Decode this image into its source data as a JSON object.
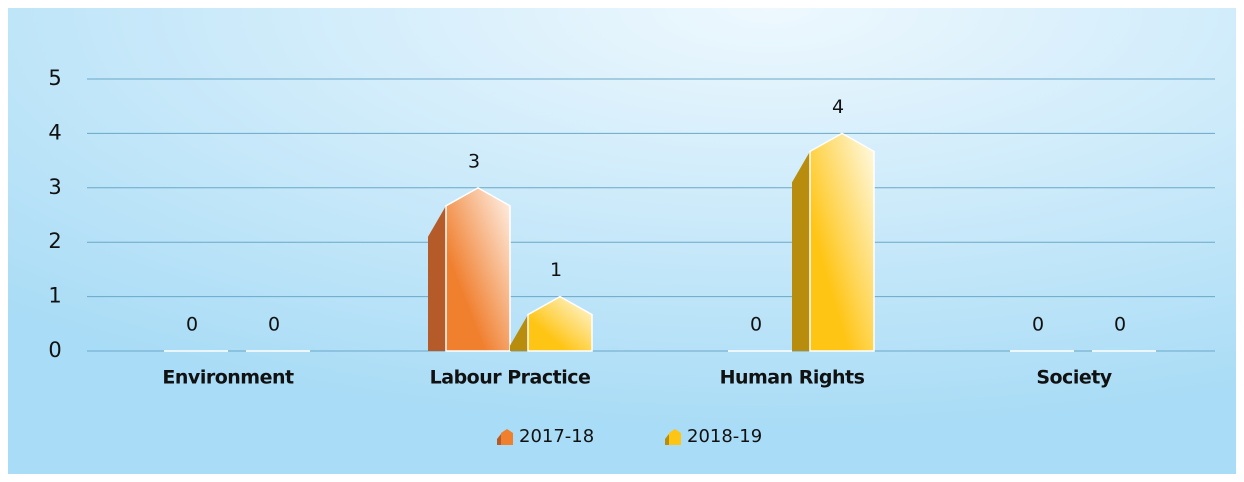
{
  "chart_data": {
    "type": "bar",
    "categories": [
      "Environment",
      "Labour Practice",
      "Human Rights",
      "Society"
    ],
    "series": [
      {
        "name": "2017-18",
        "color": "#f07f2e",
        "values": [
          0,
          3,
          0,
          0
        ]
      },
      {
        "name": "2018-19",
        "color": "#ffc514",
        "values": [
          0,
          1,
          4,
          0
        ]
      }
    ],
    "ylim": [
      0,
      5
    ],
    "yticks": [
      0,
      1,
      2,
      3,
      4,
      5
    ],
    "grid": true,
    "legend": "bottom"
  }
}
